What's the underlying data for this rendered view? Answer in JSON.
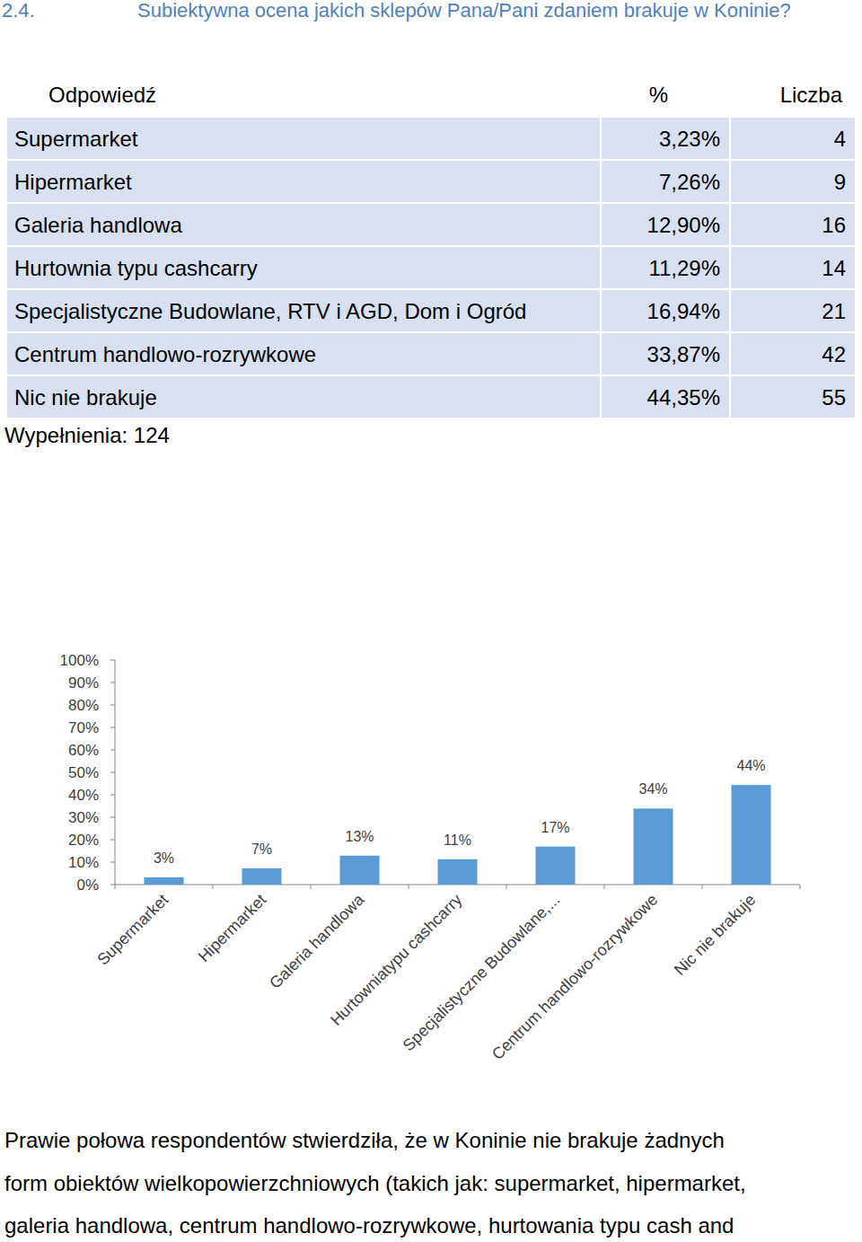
{
  "heading": {
    "number": "2.4.",
    "text": "Subiektywna ocena jakich sklepów Pana/Pani zdaniem brakuje w Koninie?"
  },
  "table": {
    "header": [
      "Odpowiedź",
      "%",
      "Liczba"
    ],
    "rows": [
      [
        "Supermarket",
        "3,23%",
        4
      ],
      [
        "Hipermarket",
        "7,26%",
        9
      ],
      [
        "Galeria handlowa",
        "12,90%",
        16
      ],
      [
        "Hurtownia typu cashcarry",
        "11,29%",
        14
      ],
      [
        "Specjalistyczne Budowlane, RTV i AGD, Dom i Ogród",
        "16,94%",
        21
      ],
      [
        "Centrum handlowo-rozrywkowe",
        "33,87%",
        42
      ],
      [
        "Nic nie brakuje",
        "44,35%",
        55
      ]
    ]
  },
  "fill_note": "Wypełnienia: 124",
  "chart_data": {
    "type": "bar",
    "categories": [
      "Supermarket",
      "Hipermarket",
      "Galeria handlowa",
      "Hurtowniatypu cashcarry",
      "Specjalistyczne Budowlane,...",
      "Centrum handlowo-rozrywkowe",
      "Nic nie brakuje"
    ],
    "values": [
      3.23,
      7.26,
      12.9,
      11.29,
      16.94,
      33.87,
      44.35
    ],
    "value_labels": [
      "3%",
      "7%",
      "13%",
      "11%",
      "17%",
      "34%",
      "44%"
    ],
    "data_labels": true,
    "color": "#5b9bd5",
    "grid": false,
    "ylim": [
      0,
      100
    ],
    "yticks": [
      {
        "value": 0,
        "label": "0%"
      },
      {
        "value": 10,
        "label": "10%"
      },
      {
        "value": 20,
        "label": "20%"
      },
      {
        "value": 30,
        "label": "30%"
      },
      {
        "value": 40,
        "label": "40%"
      },
      {
        "value": 50,
        "label": "50%"
      },
      {
        "value": 60,
        "label": "60%"
      },
      {
        "value": 70,
        "label": "70%"
      },
      {
        "value": 80,
        "label": "80%"
      },
      {
        "value": 90,
        "label": "90%"
      },
      {
        "value": 100,
        "label": "100%"
      }
    ]
  },
  "paragraph": {
    "lines": [
      "Prawie połowa respondentów stwierdziła, że w Koninie nie brakuje żadnych",
      "form obiektów wielkopowierzchniowych (takich jak: supermarket, hipermarket,",
      "galeria handlowa, centrum handlowo-rozrywkowe, hurtowania typu cash and"
    ]
  }
}
